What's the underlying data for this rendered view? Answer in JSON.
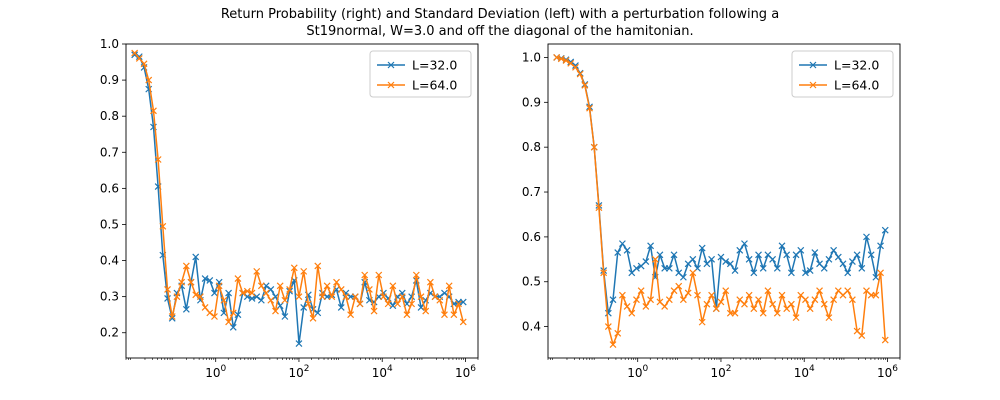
{
  "title_line1": "Return Probability (right) and Standard Deviation (left) with a perturbation following a",
  "title_line2": "St19normal, W=3.0 and off the diagonal of the hamitonian.",
  "chart_data": [
    {
      "type": "line",
      "xscale": "log",
      "xlim": [
        0.007,
        2000000
      ],
      "ylim": [
        0.13,
        1.0
      ],
      "xticks": [
        {
          "value": 1,
          "label": "10^0"
        },
        {
          "value": 100,
          "label": "10^2"
        },
        {
          "value": 10000,
          "label": "10^4"
        },
        {
          "value": 1000000,
          "label": "10^6"
        }
      ],
      "yticks": [
        0.2,
        0.3,
        0.4,
        0.5,
        0.6,
        0.7,
        0.8,
        0.9,
        1.0
      ],
      "ytick_labels": [
        "0.2",
        "0.3",
        "0.4",
        "0.5",
        "0.6",
        "0.7",
        "0.8",
        "0.9",
        "1.0"
      ],
      "legend": "top-right",
      "series": [
        {
          "name": "L=32.0",
          "color": "#1f77b4",
          "marker": "x",
          "x": [
            0.0113,
            0.0146,
            0.019,
            0.0246,
            0.032,
            0.0414,
            0.0537,
            0.0697,
            0.0903,
            0.117,
            0.152,
            0.197,
            0.255,
            0.331,
            0.429,
            0.556,
            0.721,
            0.934,
            1.21,
            1.57,
            2.04,
            2.64,
            3.42,
            4.44,
            5.75,
            7.46,
            9.67,
            12.5,
            16.3,
            21.1,
            27.3,
            35.4,
            45.9,
            59.6,
            77.2,
            100,
            130,
            168,
            218,
            283,
            367,
            475,
            616,
            799,
            1036,
            1343,
            1741,
            2257,
            2927,
            3794,
            4919,
            6377,
            8267,
            10718,
            13894,
            18012,
            23351,
            30272,
            39244,
            50876,
            65954,
            85502,
            110844,
            143697,
            186287,
            241500,
            313077,
            405867,
            526162,
            682109,
            884276
          ],
          "y": [
            0.97,
            0.965,
            0.935,
            0.875,
            0.77,
            0.605,
            0.415,
            0.295,
            0.24,
            0.31,
            0.33,
            0.265,
            0.34,
            0.41,
            0.29,
            0.35,
            0.345,
            0.31,
            0.34,
            0.255,
            0.31,
            0.215,
            0.25,
            0.31,
            0.3,
            0.295,
            0.3,
            0.29,
            0.33,
            0.32,
            0.3,
            0.275,
            0.245,
            0.315,
            0.345,
            0.17,
            0.27,
            0.305,
            0.265,
            0.255,
            0.31,
            0.3,
            0.305,
            0.32,
            0.27,
            0.31,
            0.3,
            0.3,
            0.28,
            0.34,
            0.29,
            0.285,
            0.3,
            0.31,
            0.295,
            0.275,
            0.3,
            0.31,
            0.28,
            0.3,
            0.345,
            0.27,
            0.29,
            0.31,
            0.3,
            0.3,
            0.31,
            0.3,
            0.28,
            0.285,
            0.285
          ]
        },
        {
          "name": "L=64.0",
          "color": "#ff7f0e",
          "marker": "x",
          "x": [
            0.0113,
            0.0146,
            0.019,
            0.0246,
            0.032,
            0.0414,
            0.0537,
            0.0697,
            0.0903,
            0.117,
            0.152,
            0.197,
            0.255,
            0.331,
            0.429,
            0.556,
            0.721,
            0.934,
            1.21,
            1.57,
            2.04,
            2.64,
            3.42,
            4.44,
            5.75,
            7.46,
            9.67,
            12.5,
            16.3,
            21.1,
            27.3,
            35.4,
            45.9,
            59.6,
            77.2,
            100,
            130,
            168,
            218,
            283,
            367,
            475,
            616,
            799,
            1036,
            1343,
            1741,
            2257,
            2927,
            3794,
            4919,
            6377,
            8267,
            10718,
            13894,
            18012,
            23351,
            30272,
            39244,
            50876,
            65954,
            85502,
            110844,
            143697,
            186287,
            241500,
            313077,
            405867,
            526162,
            682109,
            884276
          ],
          "y": [
            0.975,
            0.96,
            0.945,
            0.9,
            0.815,
            0.68,
            0.495,
            0.32,
            0.245,
            0.3,
            0.34,
            0.385,
            0.34,
            0.305,
            0.3,
            0.27,
            0.255,
            0.245,
            0.33,
            0.29,
            0.23,
            0.255,
            0.35,
            0.31,
            0.315,
            0.31,
            0.37,
            0.33,
            0.31,
            0.29,
            0.26,
            0.33,
            0.29,
            0.32,
            0.38,
            0.3,
            0.37,
            0.28,
            0.24,
            0.385,
            0.3,
            0.33,
            0.3,
            0.34,
            0.32,
            0.3,
            0.25,
            0.3,
            0.28,
            0.36,
            0.32,
            0.26,
            0.36,
            0.3,
            0.28,
            0.33,
            0.28,
            0.3,
            0.25,
            0.28,
            0.36,
            0.3,
            0.26,
            0.34,
            0.3,
            0.29,
            0.25,
            0.33,
            0.25,
            0.28,
            0.23
          ]
        }
      ]
    },
    {
      "type": "line",
      "xscale": "log",
      "xlim": [
        0.007,
        2000000
      ],
      "ylim": [
        0.33,
        1.03
      ],
      "xticks": [
        {
          "value": 1,
          "label": "10^0"
        },
        {
          "value": 100,
          "label": "10^2"
        },
        {
          "value": 10000,
          "label": "10^4"
        },
        {
          "value": 1000000,
          "label": "10^6"
        }
      ],
      "yticks": [
        0.4,
        0.5,
        0.6,
        0.7,
        0.8,
        0.9,
        1.0
      ],
      "ytick_labels": [
        "0.4",
        "0.5",
        "0.6",
        "0.7",
        "0.8",
        "0.9",
        "1.0"
      ],
      "legend": "top-right",
      "series": [
        {
          "name": "L=32.0",
          "color": "#1f77b4",
          "marker": "x",
          "x": [
            0.0113,
            0.0146,
            0.019,
            0.0246,
            0.032,
            0.0414,
            0.0537,
            0.0697,
            0.0903,
            0.117,
            0.152,
            0.197,
            0.255,
            0.331,
            0.429,
            0.556,
            0.721,
            0.934,
            1.21,
            1.57,
            2.04,
            2.64,
            3.42,
            4.44,
            5.75,
            7.46,
            9.67,
            12.5,
            16.3,
            21.1,
            27.3,
            35.4,
            45.9,
            59.6,
            77.2,
            100,
            130,
            168,
            218,
            283,
            367,
            475,
            616,
            799,
            1036,
            1343,
            1741,
            2257,
            2927,
            3794,
            4919,
            6377,
            8267,
            10718,
            13894,
            18012,
            23351,
            30272,
            39244,
            50876,
            65954,
            85502,
            110844,
            143697,
            186287,
            241500,
            313077,
            405867,
            526162,
            682109,
            884276
          ],
          "y": [
            1.0,
            0.998,
            0.995,
            0.99,
            0.982,
            0.965,
            0.94,
            0.89,
            0.8,
            0.67,
            0.525,
            0.43,
            0.46,
            0.565,
            0.585,
            0.57,
            0.52,
            0.53,
            0.535,
            0.545,
            0.58,
            0.51,
            0.56,
            0.53,
            0.53,
            0.56,
            0.52,
            0.51,
            0.54,
            0.55,
            0.53,
            0.575,
            0.54,
            0.55,
            0.44,
            0.555,
            0.545,
            0.54,
            0.525,
            0.57,
            0.585,
            0.55,
            0.52,
            0.56,
            0.53,
            0.56,
            0.55,
            0.53,
            0.58,
            0.56,
            0.52,
            0.56,
            0.57,
            0.52,
            0.525,
            0.565,
            0.54,
            0.53,
            0.55,
            0.57,
            0.555,
            0.54,
            0.52,
            0.545,
            0.56,
            0.53,
            0.6,
            0.56,
            0.51,
            0.58,
            0.615
          ]
        },
        {
          "name": "L=64.0",
          "color": "#ff7f0e",
          "marker": "x",
          "x": [
            0.0113,
            0.0146,
            0.019,
            0.0246,
            0.032,
            0.0414,
            0.0537,
            0.0697,
            0.0903,
            0.117,
            0.152,
            0.197,
            0.255,
            0.331,
            0.429,
            0.556,
            0.721,
            0.934,
            1.21,
            1.57,
            2.04,
            2.64,
            3.42,
            4.44,
            5.75,
            7.46,
            9.67,
            12.5,
            16.3,
            21.1,
            27.3,
            35.4,
            45.9,
            59.6,
            77.2,
            100,
            130,
            168,
            218,
            283,
            367,
            475,
            616,
            799,
            1036,
            1343,
            1741,
            2257,
            2927,
            3794,
            4919,
            6377,
            8267,
            10718,
            13894,
            18012,
            23351,
            30272,
            39244,
            50876,
            65954,
            85502,
            110844,
            143697,
            186287,
            241500,
            313077,
            405867,
            526162,
            682109,
            884276
          ],
          "y": [
            1.0,
            0.997,
            0.993,
            0.987,
            0.978,
            0.963,
            0.938,
            0.887,
            0.8,
            0.665,
            0.52,
            0.4,
            0.36,
            0.385,
            0.47,
            0.445,
            0.43,
            0.46,
            0.48,
            0.445,
            0.46,
            0.55,
            0.455,
            0.445,
            0.46,
            0.48,
            0.49,
            0.46,
            0.475,
            0.52,
            0.47,
            0.41,
            0.45,
            0.47,
            0.44,
            0.455,
            0.48,
            0.43,
            0.43,
            0.46,
            0.45,
            0.47,
            0.44,
            0.46,
            0.43,
            0.48,
            0.45,
            0.43,
            0.47,
            0.44,
            0.45,
            0.42,
            0.47,
            0.46,
            0.44,
            0.46,
            0.48,
            0.45,
            0.42,
            0.46,
            0.48,
            0.47,
            0.48,
            0.46,
            0.39,
            0.38,
            0.48,
            0.47,
            0.47,
            0.52,
            0.37
          ]
        }
      ]
    }
  ]
}
